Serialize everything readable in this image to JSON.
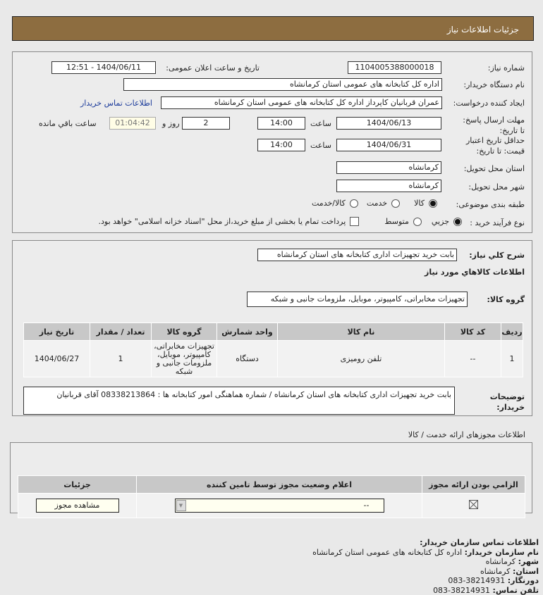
{
  "header": {
    "title": "جزئیات اطلاعات نیاز"
  },
  "need": {
    "number_label": "شماره نیاز:",
    "number": "1104005388000018",
    "announce_label": "تاریخ و ساعت اعلان عمومی:",
    "announce": "1404/06/11 - 12:51",
    "buyer_label": "نام دستگاه خریدار:",
    "buyer": "اداره کل کتابخانه های عمومی استان کرمانشاه",
    "creator_label": "ایجاد کننده درخواست:",
    "creator": "عمران قربانیان کاپرداز اداره کل کتابخانه های عمومی استان کرمانشاه",
    "contact_link": "اطلاعات تماس خریدار",
    "deadline_label": "مهلت ارسال پاسخ: تا تاریخ:",
    "deadline_date": "1404/06/13",
    "time_label": "ساعت",
    "deadline_time": "14:00",
    "days": "2",
    "days_label": "روز و",
    "remaining": "01:04:42",
    "remaining_label": "ساعت باقي مانده",
    "validity_label": "حداقل تاریخ اعتبار قیمت: تا تاریخ:",
    "validity_date": "1404/06/31",
    "validity_time": "14:00",
    "province_label": "استان محل تحویل:",
    "province": "کرمانشاه",
    "city_label": "شهر محل تحویل:",
    "city": "کرمانشاه",
    "category_label": "طبقه بندی موضوعی:",
    "category_options": [
      "کالا",
      "خدمت",
      "کالا/خدمت"
    ],
    "category_selected": "کالا",
    "process_label": "نوع فرآیند خرید :",
    "process_options": [
      "جزیي",
      "متوسط"
    ],
    "process_selected": "جزیي",
    "payment_note": "پرداخت تمام یا بخشی از مبلغ خرید،از محل \"اسناد خزانه اسلامی\" خواهد بود."
  },
  "desc": {
    "label": "شرح كلي نياز:",
    "value": "بابت خرید تجهیزات اداری کتابخانه های استان کرمانشاه",
    "goods_title": "اطلاعات كالاهاي مورد نياز",
    "group_label": "گروه کالا:",
    "group": "تجهیزات مخابراتی، کامپیوتر، موبایل، ملزومات جانبی و شبکه"
  },
  "items": {
    "headers": [
      "ردیف",
      "کد کالا",
      "نام کالا",
      "واحد شمارش",
      "گروه کالا",
      "تعداد / مقدار",
      "تاریخ نیاز"
    ],
    "rows": [
      [
        "1",
        "--",
        "تلفن رومیزی",
        "دستگاه",
        "تجهیزات مخابراتی، کامپیوتر، موبایل، ملزومات جانبی و شبکه",
        "1",
        "1404/06/27"
      ]
    ]
  },
  "notes": {
    "label": "توضیحات خریدار:",
    "value": "بابت خرید تجهیزات اداری کتابخانه های استان کرمانشاه / شماره هماهنگی امور کتابخانه ها : 08338213864 آقای قربانیان"
  },
  "permits": {
    "title": "اطلاعات مجوزهای ارائه خدمت / کالا",
    "headers": [
      "الزامي بودن ارائه مجوز",
      "اعلام وضعیت مجوز توسط تامین کننده",
      "جزئیات"
    ],
    "status": "--",
    "view_button": "مشاهده مجوز"
  },
  "contact": {
    "title": "اطلاعات تماس سازمان خریدار:",
    "lines": [
      {
        "k": "نام سازمان خریدار:",
        "v": "اداره کل کتابخانه های عمومی استان کرمانشاه"
      },
      {
        "k": "شهر:",
        "v": "کرمانشاه"
      },
      {
        "k": "استان:",
        "v": "کرمانشاه"
      },
      {
        "k": "دورنگار:",
        "v": "083-38214931"
      },
      {
        "k": "تلفن تماس:",
        "v": "083-38214931"
      }
    ]
  }
}
